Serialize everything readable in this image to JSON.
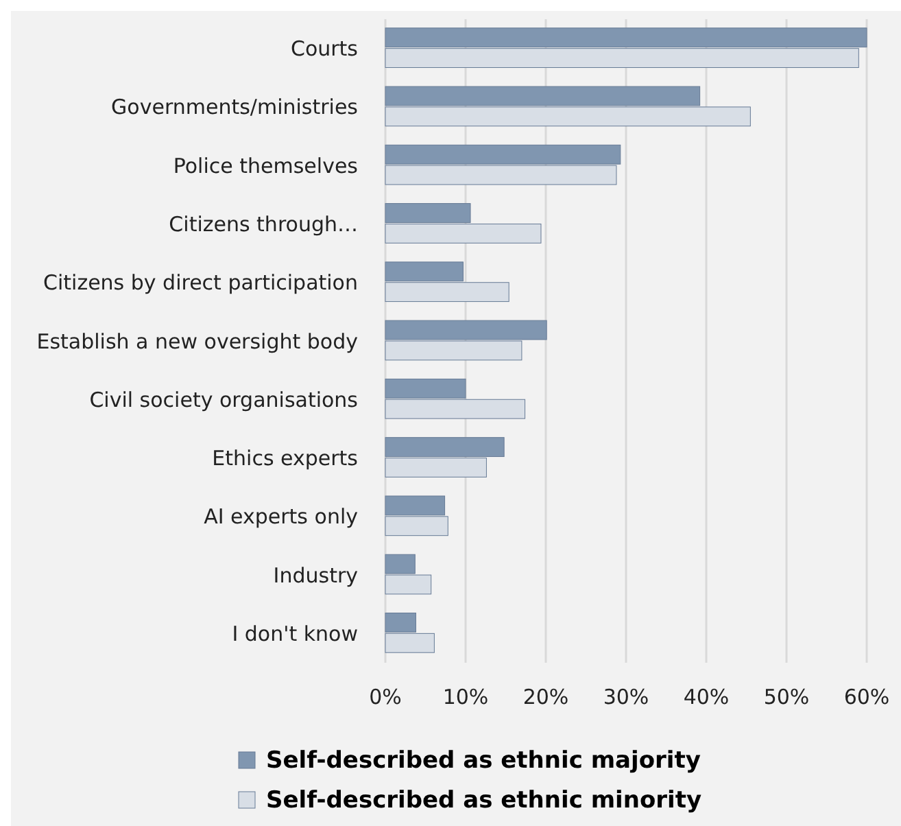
{
  "chart_data": {
    "type": "bar",
    "orientation": "horizontal",
    "categories": [
      "Courts",
      "Governments/ministries",
      "Police themselves",
      "Citizens through…",
      "Citizens by direct participation",
      "Establish a new oversight body",
      "Civil society organisations",
      "Ethics experts",
      "AI experts only",
      "Industry",
      "I don't know"
    ],
    "series": [
      {
        "name": "Self-described as ethnic majority",
        "color": "#8096b0",
        "values": [
          60,
          39.2,
          29.3,
          10.6,
          9.7,
          20.1,
          10,
          14.8,
          7.4,
          3.7,
          3.8
        ]
      },
      {
        "name": "Self-described as ethnic minority",
        "color": "#d8dee6",
        "values": [
          59,
          45.5,
          28.8,
          19.4,
          15.4,
          17,
          17.4,
          12.6,
          7.8,
          5.7,
          6.1
        ]
      }
    ],
    "xlim": [
      0,
      60
    ],
    "xticks": [
      {
        "value": 0,
        "label": "0%"
      },
      {
        "value": 10,
        "label": "10%"
      },
      {
        "value": 20,
        "label": "20%"
      },
      {
        "value": 30,
        "label": "30%"
      },
      {
        "value": 40,
        "label": "40%"
      },
      {
        "value": 50,
        "label": "50%"
      },
      {
        "value": 60,
        "label": "60%"
      }
    ],
    "grid": "x",
    "legend": "bottom"
  }
}
